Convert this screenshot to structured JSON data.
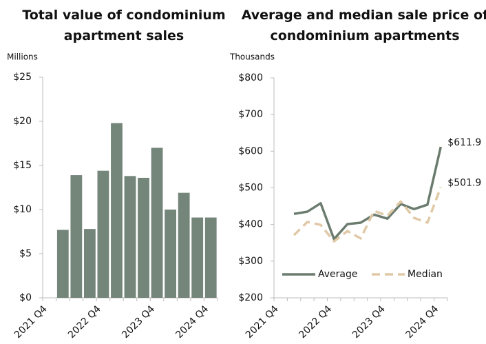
{
  "chart_data": [
    {
      "type": "bar",
      "title": "Total value of condominium apartment sales",
      "y_label": "Millions",
      "categories": [
        "2021 Q4",
        null,
        null,
        null,
        "2022 Q4",
        null,
        null,
        null,
        "2023 Q4",
        null,
        null,
        null,
        "2024 Q4"
      ],
      "values": [
        null,
        7.7,
        13.9,
        7.8,
        14.4,
        19.8,
        13.8,
        13.6,
        17.0,
        10.0,
        11.9,
        9.1,
        9.1
      ],
      "color": "#74857a",
      "ylim": [
        0,
        25
      ],
      "yticks": [
        {
          "value": 0,
          "label": "$0"
        },
        {
          "value": 5,
          "label": "$5"
        },
        {
          "value": 10,
          "label": "$10"
        },
        {
          "value": 15,
          "label": "$15"
        },
        {
          "value": 20,
          "label": "$20"
        },
        {
          "value": 25,
          "label": "$25"
        }
      ]
    },
    {
      "type": "line",
      "title": "Average and median sale price of condominium apartments",
      "y_label": "Thousands",
      "categories": [
        "2021 Q4",
        null,
        null,
        null,
        "2022 Q4",
        null,
        null,
        null,
        "2023 Q4",
        null,
        null,
        null,
        "2024 Q4"
      ],
      "series": [
        {
          "name": "Average",
          "color": "#6b7c6f",
          "dashed": false,
          "values": [
            null,
            429,
            435,
            458,
            360,
            401,
            405,
            427,
            416,
            456,
            442,
            454,
            611.9
          ],
          "value_labels": [
            null,
            null,
            null,
            null,
            null,
            null,
            null,
            null,
            null,
            null,
            null,
            null,
            "$611.9"
          ]
        },
        {
          "name": "Median",
          "color": "#e0c9a6",
          "dashed": true,
          "values": [
            null,
            371,
            407,
            399,
            354,
            382,
            362,
            437,
            424,
            463,
            418,
            405,
            501.9
          ],
          "value_labels": [
            null,
            null,
            null,
            null,
            null,
            null,
            null,
            null,
            null,
            null,
            null,
            null,
            "$501.9"
          ]
        }
      ],
      "legend": "lower-left",
      "ylim": [
        200,
        800
      ],
      "yticks": [
        {
          "value": 200,
          "label": "$200"
        },
        {
          "value": 300,
          "label": "$300"
        },
        {
          "value": 400,
          "label": "$400"
        },
        {
          "value": 500,
          "label": "$500"
        },
        {
          "value": 600,
          "label": "$600"
        },
        {
          "value": 700,
          "label": "$700"
        },
        {
          "value": 800,
          "label": "$800"
        }
      ]
    }
  ]
}
